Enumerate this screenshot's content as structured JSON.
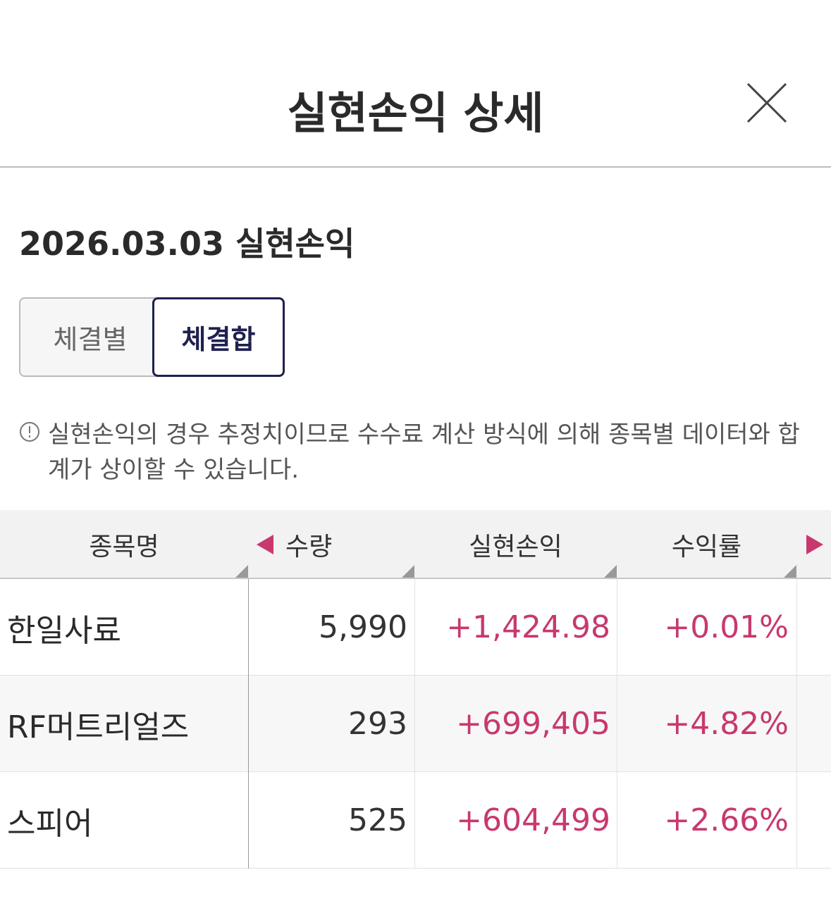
{
  "header": {
    "title": "실현손익 상세"
  },
  "date_title": "2026.03.03 실현손익",
  "tabs": [
    "체결별",
    "체결합"
  ],
  "notice": "실현손익의 경우 추정치이므로 수수료 계산 방식에 의해 종목별 데이터와 합계가 상이할 수 있습니다.",
  "table": {
    "columns": [
      "종목명",
      "수량",
      "실현손익",
      "수익률"
    ],
    "rows": [
      [
        "한일사료",
        "5,990",
        "+1,424.98",
        "+0.01%"
      ],
      [
        "RF머트리얼즈",
        "293",
        "+699,405",
        "+4.82%"
      ],
      [
        "스피어",
        "525",
        "+604,499",
        "+2.66%"
      ]
    ]
  }
}
